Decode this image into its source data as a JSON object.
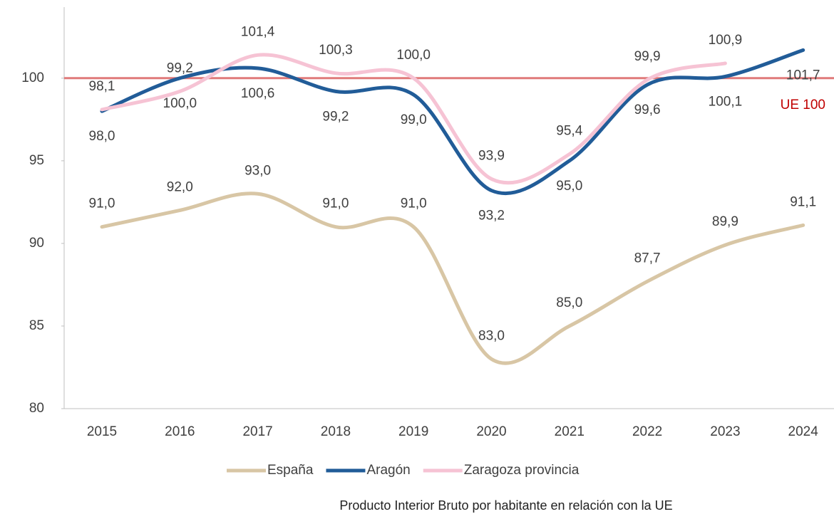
{
  "chart_data": {
    "type": "line",
    "categories": [
      "2015",
      "2016",
      "2017",
      "2018",
      "2019",
      "2020",
      "2021",
      "2022",
      "2023",
      "2024"
    ],
    "series": [
      {
        "name": "España",
        "color": "#d8c6a5",
        "label_side": "above",
        "values": [
          91.0,
          92.0,
          93.0,
          91.0,
          91.0,
          83.0,
          85.0,
          87.7,
          89.9,
          91.1
        ],
        "value_labels": [
          "91,0",
          "92,0",
          "93,0",
          "91,0",
          "91,0",
          "83,0",
          "85,0",
          "87,7",
          "89,9",
          "91,1"
        ]
      },
      {
        "name": "Aragón",
        "color": "#215c98",
        "label_side": "below",
        "values": [
          98.0,
          100.0,
          100.6,
          99.2,
          99.0,
          93.2,
          95.0,
          99.6,
          100.1,
          101.7
        ],
        "value_labels": [
          "98,0",
          "100,0",
          "100,6",
          "99,2",
          "99,0",
          "93,2",
          "95,0",
          "99,6",
          "100,1",
          "101,7"
        ]
      },
      {
        "name": "Zaragoza provincia",
        "color": "#f6c3d4",
        "label_side": "above",
        "values": [
          98.1,
          99.2,
          101.4,
          100.3,
          100.0,
          93.9,
          95.4,
          99.9,
          100.9,
          null
        ],
        "value_labels": [
          "98,1",
          "99,2",
          "101,4",
          "100,3",
          "100,0",
          "93,9",
          "95,4",
          "99,9",
          "100,9",
          null
        ]
      }
    ],
    "reference_line": {
      "value": 100,
      "label": "UE 100",
      "color": "#e07a7a",
      "label_color": "#c00000"
    },
    "ylim": [
      80,
      104.3
    ],
    "yticks": [
      80,
      85,
      90,
      95,
      100
    ],
    "legend": "bottom",
    "footnote": "Producto Interior Bruto por habitante en relación con la UE"
  }
}
